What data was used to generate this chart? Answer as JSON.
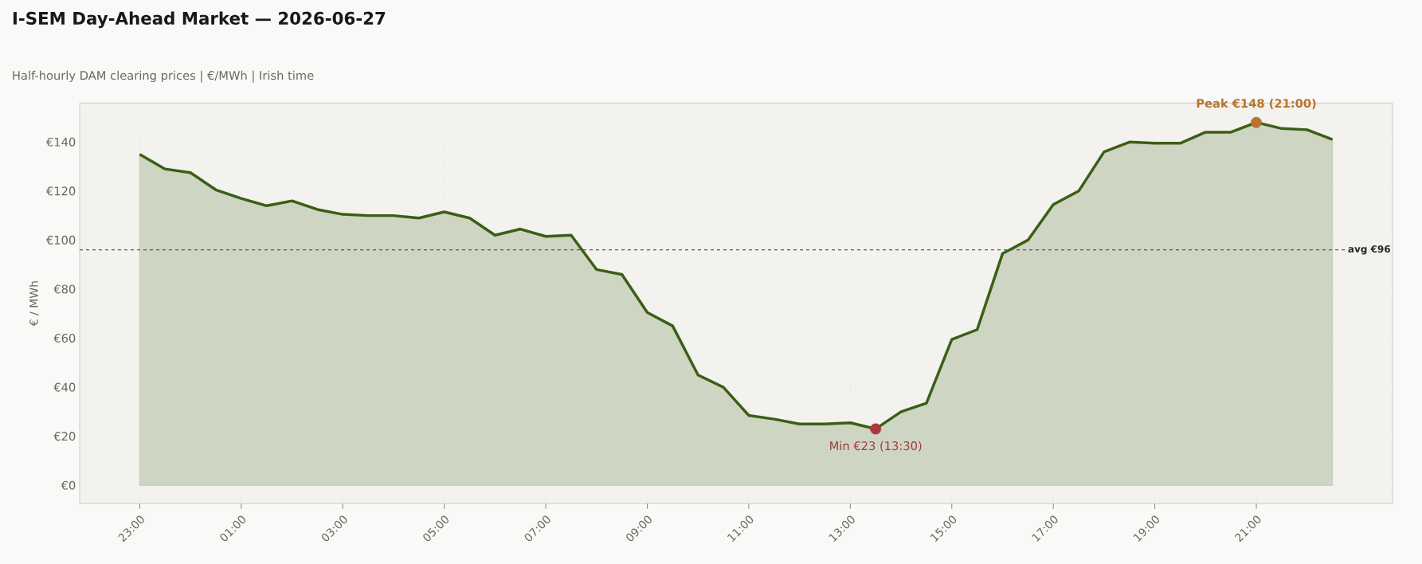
{
  "chart_data": {
    "type": "area",
    "title": "I-SEM Day-Ahead Market — 2026-06-27",
    "subtitle": "Half-hourly DAM clearing prices  |  €/MWh  |  Irish time",
    "ylabel": "€ / MWh",
    "x": [
      "2026-06-26T23:00",
      "2026-06-26T23:30",
      "2026-06-27T00:00",
      "2026-06-27T00:30",
      "2026-06-27T01:00",
      "2026-06-27T01:30",
      "2026-06-27T02:00",
      "2026-06-27T02:30",
      "2026-06-27T03:00",
      "2026-06-27T03:30",
      "2026-06-27T04:00",
      "2026-06-27T04:30",
      "2026-06-27T05:00",
      "2026-06-27T05:30",
      "2026-06-27T06:00",
      "2026-06-27T06:30",
      "2026-06-27T07:00",
      "2026-06-27T07:30",
      "2026-06-27T08:00",
      "2026-06-27T08:30",
      "2026-06-27T09:00",
      "2026-06-27T09:30",
      "2026-06-27T10:00",
      "2026-06-27T10:30",
      "2026-06-27T11:00",
      "2026-06-27T11:30",
      "2026-06-27T12:00",
      "2026-06-27T12:30",
      "2026-06-27T13:00",
      "2026-06-27T13:30",
      "2026-06-27T14:00",
      "2026-06-27T14:30",
      "2026-06-27T15:00",
      "2026-06-27T15:30",
      "2026-06-27T16:00",
      "2026-06-27T16:30",
      "2026-06-27T17:00",
      "2026-06-27T17:30",
      "2026-06-27T18:00",
      "2026-06-27T18:30",
      "2026-06-27T19:00",
      "2026-06-27T19:30",
      "2026-06-27T20:00",
      "2026-06-27T20:30",
      "2026-06-27T21:00",
      "2026-06-27T21:30",
      "2026-06-27T22:00",
      "2026-06-27T22:30"
    ],
    "series": [
      {
        "color": "#3a5f14",
        "marker": "none",
        "values": [
          135,
          129,
          127.5,
          120.5,
          117,
          114,
          116,
          112.5,
          110.5,
          110,
          110,
          109,
          111.5,
          109,
          102,
          104.5,
          101.5,
          102,
          88,
          86,
          70.5,
          65,
          45,
          40,
          28.5,
          27,
          25,
          25,
          25.5,
          23,
          30,
          33.5,
          59.5,
          63.5,
          94.5,
          100,
          114.5,
          120,
          136,
          140,
          139.5,
          139.5,
          144,
          144,
          148,
          145.5,
          145,
          141
        ]
      },
      {
        "type": "scatter",
        "color": "#b8732e",
        "marker": "circle",
        "x": [
          "2026-06-27T21:00"
        ],
        "values": [
          148
        ]
      },
      {
        "type": "scatter",
        "color": "#a83a3c",
        "marker": "circle",
        "x": [
          "2026-06-27T13:30"
        ],
        "values": [
          23
        ]
      }
    ],
    "annotations": [
      {
        "text": "Peak  €148  (21:00)",
        "x": "2026-06-27T21:00",
        "y": 148
      },
      {
        "text": "Min  €23  (13:30)",
        "x": "2026-06-27T13:30",
        "y": 23
      }
    ],
    "ref_lines": [
      {
        "axis": "y",
        "value": 96,
        "label": "avg €96",
        "color": "#555555",
        "line_style": "dashed"
      }
    ],
    "xlim": [
      "2026-06-26T21:49",
      "2026-06-27T23:41"
    ],
    "ylim": [
      -7.4,
      155.9
    ],
    "xticks": [
      {
        "value": "2026-06-26T23:00",
        "label": "23:00"
      },
      {
        "value": "2026-06-27T01:00",
        "label": "01:00"
      },
      {
        "value": "2026-06-27T03:00",
        "label": "03:00"
      },
      {
        "value": "2026-06-27T05:00",
        "label": "05:00"
      },
      {
        "value": "2026-06-27T07:00",
        "label": "07:00"
      },
      {
        "value": "2026-06-27T09:00",
        "label": "09:00"
      },
      {
        "value": "2026-06-27T11:00",
        "label": "11:00"
      },
      {
        "value": "2026-06-27T13:00",
        "label": "13:00"
      },
      {
        "value": "2026-06-27T15:00",
        "label": "15:00"
      },
      {
        "value": "2026-06-27T17:00",
        "label": "17:00"
      },
      {
        "value": "2026-06-27T19:00",
        "label": "19:00"
      },
      {
        "value": "2026-06-27T21:00",
        "label": "21:00"
      }
    ],
    "yticks": [
      {
        "value": 0,
        "label": "€0"
      },
      {
        "value": 20,
        "label": "€20"
      },
      {
        "value": 40,
        "label": "€40"
      },
      {
        "value": 60,
        "label": "€60"
      },
      {
        "value": 80,
        "label": "€80"
      },
      {
        "value": 100,
        "label": "€100"
      },
      {
        "value": 120,
        "label": "€120"
      },
      {
        "value": 140,
        "label": "€140"
      }
    ],
    "grid": true,
    "line_style": "solid"
  }
}
